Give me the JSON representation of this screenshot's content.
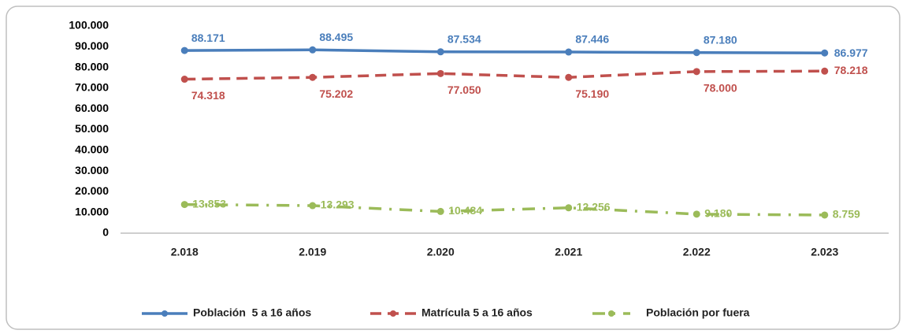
{
  "chart_data": {
    "type": "line",
    "categories": [
      "2.018",
      "2.019",
      "2.020",
      "2.021",
      "2.022",
      "2.023"
    ],
    "series": [
      {
        "name": "Población  5 a 16 años",
        "color": "#4a7ebb",
        "dash": "solid",
        "values": [
          88171,
          88495,
          87534,
          87446,
          87180,
          86977
        ],
        "value_labels": [
          "88.171",
          "88.495",
          "87.534",
          "87.446",
          "87.180",
          "86.977"
        ]
      },
      {
        "name": "Matrícula 5 a 16 años",
        "color": "#c0504d",
        "dash": "dashed",
        "values": [
          74318,
          75202,
          77050,
          75190,
          78000,
          78218
        ],
        "value_labels": [
          "74.318",
          "75.202",
          "77.050",
          "75.190",
          "78.000",
          "78.218"
        ]
      },
      {
        "name": "Población por fuera",
        "color": "#9bbb59",
        "dash": "dashdot",
        "values": [
          13853,
          13293,
          10484,
          12256,
          9180,
          8759
        ],
        "value_labels": [
          "13.853",
          "13.293",
          "10.484",
          "12.256",
          "9.180",
          "8.759"
        ]
      }
    ],
    "ylim": [
      0,
      100000
    ],
    "yticks": [
      0,
      {
        "value": 10000,
        "label": "10.000"
      },
      {
        "value": 20000,
        "label": "20.000"
      },
      {
        "value": 30000,
        "label": "30.000"
      },
      {
        "value": 40000,
        "label": "40.000"
      },
      {
        "value": 50000,
        "label": "50.000"
      },
      {
        "value": 60000,
        "label": "60.000"
      },
      {
        "value": 70000,
        "label": "70.000"
      },
      {
        "value": 80000,
        "label": "80.000"
      },
      {
        "value": 90000,
        "label": "90.000"
      },
      {
        "value": 100000,
        "label": "100.000"
      }
    ],
    "grid": false,
    "legend": "bottom"
  }
}
